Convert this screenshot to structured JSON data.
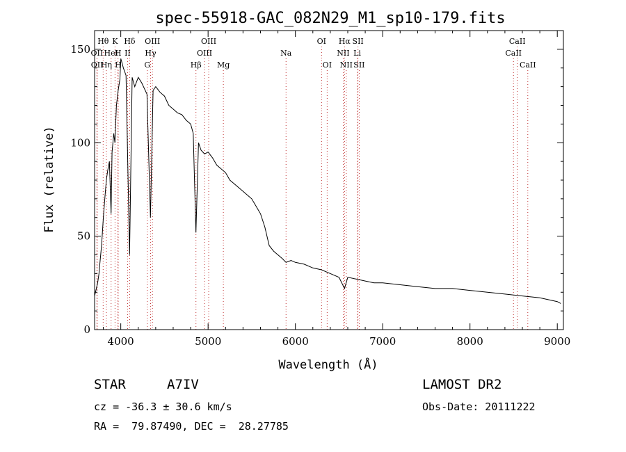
{
  "chart_data": {
    "type": "line",
    "title": "spec-55918-GAC_082N29_M1_sp10-179.fits",
    "xlabel": "Wavelength (Å)",
    "ylabel": "Flux (relative)",
    "xlim": [
      3700,
      9070
    ],
    "ylim": [
      0,
      160
    ],
    "xticks": [
      4000,
      5000,
      6000,
      7000,
      8000,
      9000
    ],
    "yticks": [
      0,
      50,
      100,
      150
    ],
    "grid": false,
    "line_color": "#000000",
    "marker_line_color": "#c03030",
    "series": [
      {
        "x": [
          3700,
          3720,
          3735,
          3750,
          3760,
          3780,
          3800,
          3820,
          3835,
          3850,
          3870,
          3889,
          3900,
          3920,
          3933,
          3950,
          3970,
          3990,
          4000,
          4030,
          4060,
          4101,
          4130,
          4160,
          4200,
          4240,
          4280,
          4300,
          4340,
          4370,
          4400,
          4450,
          4500,
          4550,
          4600,
          4650,
          4700,
          4750,
          4800,
          4830,
          4861,
          4890,
          4920,
          4960,
          5000,
          5050,
          5100,
          5150,
          5200,
          5250,
          5300,
          5350,
          5400,
          5450,
          5500,
          5550,
          5600,
          5650,
          5700,
          5750,
          5800,
          5850,
          5893,
          5950,
          6000,
          6100,
          6200,
          6300,
          6400,
          6500,
          6563,
          6600,
          6700,
          6800,
          6900,
          7000,
          7200,
          7400,
          7600,
          7800,
          8000,
          8200,
          8400,
          8600,
          8800,
          9000,
          9040
        ],
        "y": [
          18,
          22,
          25,
          30,
          35,
          45,
          60,
          72,
          80,
          85,
          90,
          62,
          95,
          105,
          100,
          120,
          128,
          134,
          145,
          140,
          136,
          40,
          135,
          130,
          135,
          132,
          128,
          126,
          60,
          128,
          130,
          127,
          125,
          120,
          118,
          116,
          115,
          112,
          110,
          105,
          52,
          100,
          96,
          94,
          95,
          92,
          88,
          86,
          84,
          80,
          78,
          76,
          74,
          72,
          70,
          66,
          62,
          55,
          45,
          42,
          40,
          38,
          36,
          37,
          36,
          35,
          33,
          32,
          30,
          28,
          22,
          28,
          27,
          26,
          25,
          25,
          24,
          23,
          22,
          22,
          21,
          20,
          19,
          18,
          17,
          15,
          14
        ]
      }
    ],
    "line_markers": [
      {
        "label": "Hθ",
        "wavelength": 3798,
        "row": 0
      },
      {
        "label": "K",
        "wavelength": 3934,
        "row": 0
      },
      {
        "label": "Hδ",
        "wavelength": 4102,
        "row": 0
      },
      {
        "label": "OIII",
        "wavelength": 4363,
        "row": 0
      },
      {
        "label": "OIII",
        "wavelength": 5007,
        "row": 0
      },
      {
        "label": "OI",
        "wavelength": 6300,
        "row": 0
      },
      {
        "label": "Hα",
        "wavelength": 6563,
        "row": 0
      },
      {
        "label": "SII",
        "wavelength": 6717,
        "row": 0
      },
      {
        "label": "CaII",
        "wavelength": 8542,
        "row": 0
      },
      {
        "label": "OII",
        "wavelength": 3727,
        "row": 1
      },
      {
        "label": "HeI",
        "wavelength": 3889,
        "row": 1
      },
      {
        "label": "H",
        "wavelength": 3968,
        "row": 1
      },
      {
        "label": "II",
        "wavelength": 4078,
        "row": 1
      },
      {
        "label": "Hγ",
        "wavelength": 4341,
        "row": 1
      },
      {
        "label": "OIII",
        "wavelength": 4959,
        "row": 1
      },
      {
        "label": "Na",
        "wavelength": 5893,
        "row": 1
      },
      {
        "label": "NII",
        "wavelength": 6548,
        "row": 1
      },
      {
        "label": "Li",
        "wavelength": 6708,
        "row": 1
      },
      {
        "label": "CaII",
        "wavelength": 8498,
        "row": 1
      },
      {
        "label": "OII",
        "wavelength": 3729,
        "row": 2
      },
      {
        "label": "Hη",
        "wavelength": 3835,
        "row": 2
      },
      {
        "label": "H",
        "wavelength": 3970,
        "row": 2
      },
      {
        "label": "G",
        "wavelength": 4304,
        "row": 2
      },
      {
        "label": "Hβ",
        "wavelength": 4861,
        "row": 2
      },
      {
        "label": "Mg",
        "wavelength": 5175,
        "row": 2
      },
      {
        "label": "OI",
        "wavelength": 6364,
        "row": 2
      },
      {
        "label": "NII",
        "wavelength": 6583,
        "row": 2
      },
      {
        "label": "SII",
        "wavelength": 6731,
        "row": 2
      },
      {
        "label": "CaII",
        "wavelength": 8662,
        "row": 2
      }
    ]
  },
  "info": {
    "object_class": "STAR",
    "subclass": "A7IV",
    "survey": "LAMOST DR2",
    "cz": "cz = -36.3 ± 30.6 km/s",
    "obs_date": "Obs-Date: 20111222",
    "coords": "RA =  79.87490, DEC =  28.27785"
  }
}
